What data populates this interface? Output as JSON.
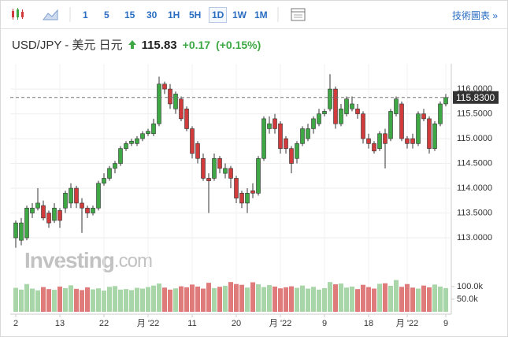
{
  "toolbar": {
    "intervals": [
      "1",
      "5",
      "15",
      "30",
      "1H",
      "5H",
      "1D",
      "1W",
      "1M"
    ],
    "selected": "1D",
    "link": "技術圖表 »"
  },
  "header": {
    "pair": "USD/JPY - 美元 日元",
    "price": "115.83",
    "change": "+0.17",
    "change_pct": "(+0.15%)"
  },
  "chart_data": {
    "type": "candlestick",
    "watermark": [
      "Investing",
      ".com"
    ],
    "up_color": "#3ea845",
    "down_color": "#d13b3b",
    "up_volume_color": "#a9d6a8",
    "down_volume_color": "#e07b7b",
    "categories": [
      "2",
      null,
      null,
      null,
      null,
      null,
      null,
      null,
      "13",
      null,
      null,
      null,
      null,
      null,
      null,
      null,
      "22",
      null,
      null,
      null,
      null,
      null,
      null,
      null,
      "月 '22",
      null,
      null,
      null,
      null,
      null,
      null,
      null,
      "11",
      null,
      null,
      null,
      null,
      null,
      null,
      null,
      "20",
      null,
      null,
      null,
      null,
      null,
      null,
      null,
      "月 '22",
      null,
      null,
      null,
      null,
      null,
      null,
      null,
      "9",
      null,
      null,
      null,
      null,
      null,
      null,
      null,
      "18",
      null,
      null,
      null,
      null,
      null,
      null,
      "月 '22",
      null,
      null,
      null,
      null,
      null,
      null,
      "9"
    ],
    "open": [
      113.0,
      112.95,
      113.0,
      113.5,
      113.6,
      113.65,
      113.5,
      113.35,
      113.55,
      113.6,
      113.7,
      114.0,
      113.7,
      113.6,
      113.5,
      113.6,
      114.1,
      114.2,
      114.4,
      114.5,
      114.8,
      114.9,
      114.9,
      115.0,
      115.1,
      115.1,
      115.3,
      116.1,
      116.0,
      115.6,
      115.8,
      115.6,
      115.2,
      114.9,
      114.6,
      114.2,
      114.2,
      114.6,
      114.3,
      114.4,
      114.2,
      113.9,
      113.7,
      113.95,
      113.9,
      114.6,
      115.2,
      115.4,
      115.3,
      115.0,
      114.8,
      114.6,
      114.9,
      115.0,
      115.2,
      115.3,
      115.5,
      115.6,
      116.0,
      115.3,
      115.5,
      115.6,
      115.6,
      115.5,
      115.0,
      114.9,
      114.8,
      115.1,
      115.0,
      115.5,
      115.7,
      115.0,
      115.0,
      114.9,
      115.5,
      115.4,
      114.8,
      115.3,
      115.7
    ],
    "high": [
      113.35,
      113.4,
      113.65,
      113.7,
      114.0,
      113.75,
      113.55,
      113.7,
      113.6,
      113.95,
      114.1,
      114.05,
      113.8,
      113.65,
      113.65,
      114.15,
      114.3,
      114.45,
      114.55,
      114.85,
      114.95,
      115.0,
      115.05,
      115.15,
      115.2,
      115.4,
      116.25,
      116.15,
      116.1,
      115.95,
      115.85,
      115.65,
      115.25,
      114.95,
      114.7,
      114.3,
      114.7,
      114.65,
      114.5,
      114.45,
      114.25,
      113.95,
      114.0,
      114.1,
      114.65,
      115.45,
      115.45,
      115.5,
      115.35,
      115.05,
      114.85,
      114.95,
      115.25,
      115.3,
      115.45,
      115.6,
      115.6,
      116.3,
      116.05,
      115.7,
      115.85,
      115.85,
      115.7,
      115.55,
      115.1,
      114.95,
      115.15,
      115.2,
      115.6,
      115.85,
      115.75,
      115.05,
      115.1,
      115.55,
      115.6,
      115.45,
      115.35,
      115.75,
      115.9
    ],
    "low": [
      112.8,
      112.85,
      112.95,
      113.4,
      113.55,
      113.35,
      113.2,
      113.3,
      113.2,
      113.5,
      113.6,
      113.6,
      113.1,
      113.4,
      113.45,
      113.55,
      114.05,
      114.15,
      114.3,
      114.45,
      114.75,
      114.85,
      114.85,
      114.95,
      115.05,
      115.05,
      115.25,
      115.9,
      115.6,
      115.5,
      115.35,
      115.15,
      114.6,
      114.5,
      114.15,
      113.5,
      114.15,
      114.3,
      114.2,
      114.0,
      113.7,
      113.6,
      113.5,
      113.8,
      113.85,
      114.55,
      115.1,
      115.1,
      114.7,
      114.7,
      114.3,
      114.5,
      114.85,
      114.95,
      115.1,
      115.25,
      115.45,
      115.55,
      115.2,
      115.25,
      115.45,
      115.55,
      115.4,
      114.9,
      114.8,
      114.7,
      114.75,
      114.4,
      114.95,
      115.45,
      114.95,
      114.8,
      114.8,
      114.85,
      115.35,
      114.7,
      114.75,
      115.25,
      115.65
    ],
    "close": [
      113.3,
      113.3,
      113.6,
      113.6,
      113.7,
      113.4,
      113.3,
      113.6,
      113.35,
      113.9,
      114.0,
      113.7,
      113.6,
      113.5,
      113.6,
      114.1,
      114.2,
      114.4,
      114.5,
      114.8,
      114.9,
      114.95,
      115.0,
      115.1,
      115.15,
      115.3,
      116.1,
      116.0,
      115.7,
      115.9,
      115.4,
      115.2,
      114.7,
      114.6,
      114.2,
      114.15,
      114.6,
      114.4,
      114.4,
      114.2,
      113.8,
      113.7,
      113.9,
      113.9,
      114.6,
      115.4,
      115.3,
      115.2,
      114.8,
      114.8,
      114.5,
      114.9,
      115.2,
      115.2,
      115.4,
      115.5,
      115.55,
      116.0,
      115.3,
      115.6,
      115.8,
      115.7,
      115.5,
      115.0,
      114.9,
      114.75,
      115.1,
      114.9,
      115.55,
      115.8,
      115.0,
      114.9,
      114.9,
      115.5,
      115.4,
      114.8,
      115.3,
      115.7,
      115.83
    ],
    "volume": [
      95,
      88,
      110,
      92,
      85,
      98,
      90,
      87,
      100,
      94,
      105,
      91,
      86,
      97,
      89,
      93,
      84,
      99,
      102,
      88,
      90,
      86,
      95,
      92,
      98,
      104,
      112,
      96,
      88,
      93,
      101,
      97,
      108,
      100,
      92,
      115,
      94,
      99,
      103,
      118,
      110,
      107,
      96,
      117,
      109,
      98,
      106,
      100,
      93,
      97,
      101,
      95,
      104,
      92,
      99,
      88,
      94,
      118,
      109,
      112,
      96,
      100,
      90,
      107,
      98,
      92,
      111,
      113,
      103,
      126,
      99,
      110,
      96,
      92,
      104,
      97,
      108,
      100,
      94
    ],
    "ylim": [
      112.54,
      116.43
    ],
    "yticks": [
      {
        "value": 113,
        "label": "113.0000"
      },
      {
        "value": 113.5,
        "label": "113.5000"
      },
      {
        "value": 114,
        "label": "114.0000"
      },
      {
        "value": 114.5,
        "label": "114.5000"
      },
      {
        "value": 115,
        "label": "115.0000"
      },
      {
        "value": 115.5,
        "label": "115.5000"
      },
      {
        "value": 116,
        "label": "116.0000"
      }
    ],
    "y2lim": [
      0,
      156
    ],
    "y2ticks": [
      {
        "value": 50,
        "label": "50.0k"
      },
      {
        "value": 100,
        "label": "100.0k"
      }
    ],
    "last_price": {
      "value": 115.83,
      "label": "115.8300"
    },
    "grid": true
  }
}
